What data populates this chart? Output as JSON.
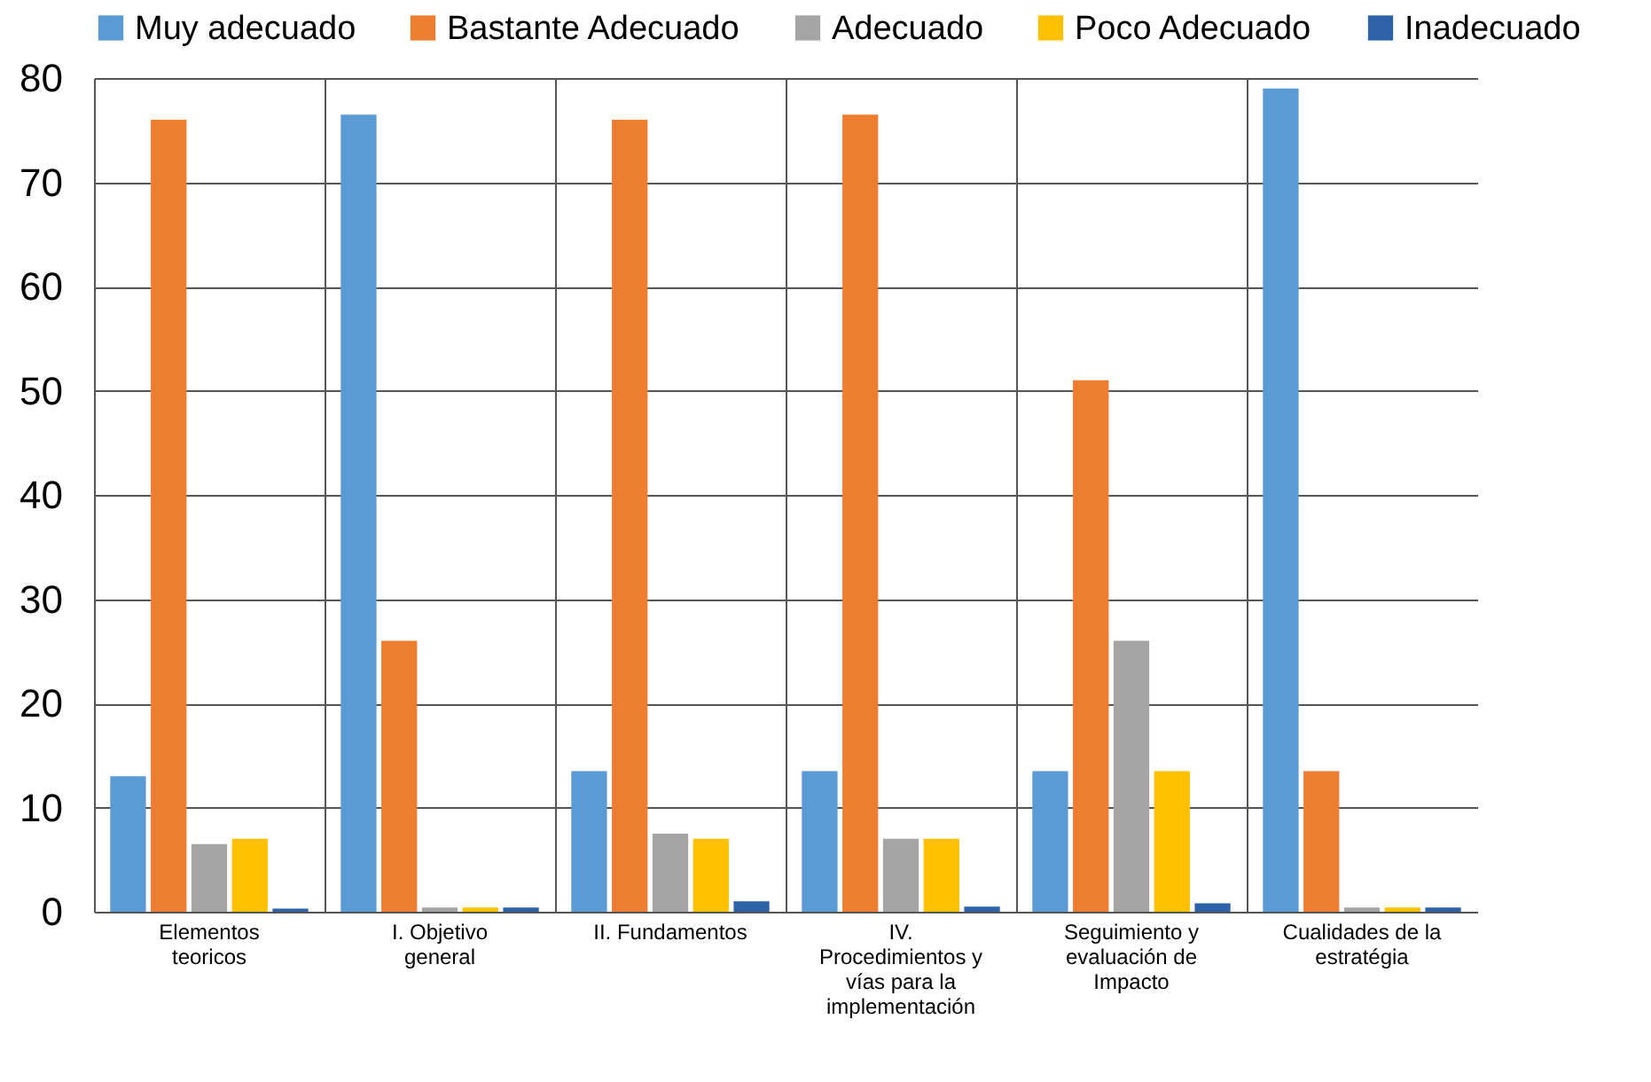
{
  "chart_data": {
    "type": "bar",
    "categories": [
      "Elementos teoricos",
      "I. Objetivo general",
      "II. Fundamentos",
      "IV. Procedimientos y vías para la implementación",
      "Seguimiento y evaluación de Impacto",
      "Cualidades de la estratégia"
    ],
    "series": [
      {
        "name": "Muy adecuado",
        "color": "#5b9bd5",
        "values": [
          13,
          76.5,
          13.5,
          13.5,
          13.5,
          79
        ]
      },
      {
        "name": "Bastante Adecuado",
        "color": "#ed7d31",
        "values": [
          76,
          26,
          76,
          76.5,
          51,
          13.5
        ]
      },
      {
        "name": "Adecuado",
        "color": "#a5a5a5",
        "values": [
          6.5,
          0.4,
          7.5,
          7,
          26,
          0.4
        ]
      },
      {
        "name": "Poco Adecuado",
        "color": "#ffc000",
        "values": [
          7,
          0.4,
          7,
          7,
          13.5,
          0.4
        ]
      },
      {
        "name": "Inadecuado",
        "color": "#2e62a8",
        "values": [
          0.3,
          0.4,
          1,
          0.5,
          0.8,
          0.4
        ]
      }
    ],
    "ylim": [
      0,
      80
    ],
    "yticks": [
      0,
      10,
      20,
      30,
      40,
      50,
      60,
      70,
      80
    ],
    "grid": true,
    "legend": "top"
  }
}
